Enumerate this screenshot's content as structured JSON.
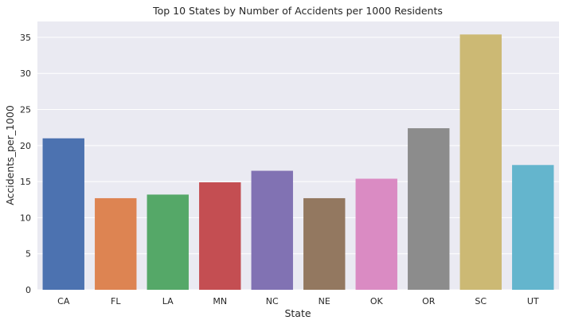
{
  "chart_data": {
    "type": "bar",
    "title": "Top 10 States by Number of Accidents per 1000 Residents",
    "xlabel": "State",
    "ylabel": "Accidents_per_1000",
    "categories": [
      "CA",
      "FL",
      "LA",
      "MN",
      "NC",
      "NE",
      "OK",
      "OR",
      "SC",
      "UT"
    ],
    "values": [
      21.0,
      12.7,
      13.2,
      14.9,
      16.5,
      12.7,
      15.4,
      22.4,
      35.4,
      17.3
    ],
    "colors": [
      "#4c72b0",
      "#dd8452",
      "#55a868",
      "#c44e52",
      "#8172b3",
      "#937860",
      "#da8bc3",
      "#8c8c8c",
      "#ccb974",
      "#64b5cd"
    ],
    "ylim": [
      0,
      37.2
    ],
    "yticks": [
      0,
      5,
      10,
      15,
      20,
      25,
      30,
      35
    ],
    "grid": true,
    "background": "#eaeaf2"
  }
}
